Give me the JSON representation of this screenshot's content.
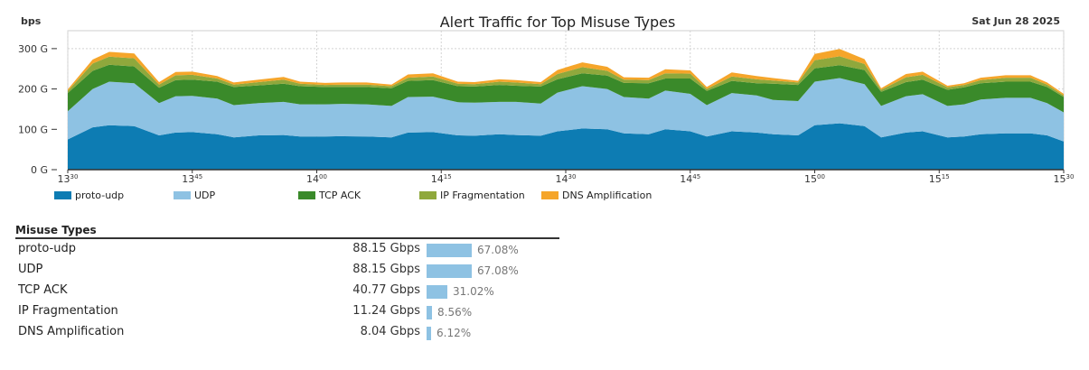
{
  "chart_data": {
    "type": "area",
    "stacked": true,
    "title": "Alert Traffic for Top Misuse Types",
    "unit_label": "bps",
    "date_label": "Sat Jun 28 2025",
    "ylim": [
      0,
      340
    ],
    "y_ticks": [
      {
        "value": 0,
        "label": "0 G"
      },
      {
        "value": 100,
        "label": "100 G"
      },
      {
        "value": 200,
        "label": "200 G"
      },
      {
        "value": 300,
        "label": "300 G"
      }
    ],
    "x_range_minutes": [
      810,
      930
    ],
    "x_ticks": [
      {
        "t": 810,
        "hour": "13",
        "minute": "30"
      },
      {
        "t": 825,
        "hour": "13",
        "minute": "45"
      },
      {
        "t": 840,
        "hour": "14",
        "minute": "00"
      },
      {
        "t": 855,
        "hour": "14",
        "minute": "15"
      },
      {
        "t": 870,
        "hour": "14",
        "minute": "30"
      },
      {
        "t": 885,
        "hour": "14",
        "minute": "45"
      },
      {
        "t": 900,
        "hour": "15",
        "minute": "00"
      },
      {
        "t": 915,
        "hour": "15",
        "minute": "15"
      },
      {
        "t": 930,
        "hour": "15",
        "minute": "30"
      }
    ],
    "grid": true,
    "legend_position": "bottom",
    "x": [
      810,
      813,
      815,
      818,
      821,
      823,
      825,
      828,
      830,
      833,
      836,
      838,
      841,
      843,
      846,
      849,
      851,
      854,
      857,
      859,
      862,
      864,
      867,
      869,
      872,
      875,
      877,
      880,
      882,
      885,
      887,
      890,
      893,
      895,
      898,
      900,
      903,
      906,
      908,
      911,
      913,
      916,
      918,
      920,
      923,
      926,
      928,
      930
    ],
    "series": [
      {
        "name": "proto-udp",
        "color": "#0d7cb3",
        "values": [
          75,
          105,
          110,
          108,
          85,
          92,
          93,
          88,
          80,
          85,
          86,
          82,
          82,
          83,
          82,
          80,
          92,
          93,
          85,
          84,
          88,
          86,
          84,
          95,
          102,
          100,
          90,
          88,
          100,
          95,
          82,
          95,
          92,
          88,
          85,
          110,
          115,
          108,
          80,
          92,
          95,
          80,
          82,
          88,
          90,
          90,
          85,
          70
        ]
      },
      {
        "name": "UDP",
        "color": "#8ec2e3",
        "values": [
          70,
          95,
          108,
          106,
          80,
          90,
          90,
          88,
          80,
          80,
          82,
          80,
          80,
          80,
          80,
          78,
          88,
          88,
          82,
          82,
          80,
          82,
          80,
          96,
          105,
          100,
          90,
          88,
          96,
          93,
          78,
          95,
          92,
          85,
          85,
          108,
          112,
          104,
          78,
          90,
          92,
          78,
          80,
          86,
          88,
          88,
          80,
          72
        ]
      },
      {
        "name": "TCP ACK",
        "color": "#3a8a2a",
        "values": [
          45,
          45,
          42,
          42,
          38,
          40,
          40,
          42,
          45,
          44,
          45,
          45,
          43,
          42,
          43,
          44,
          40,
          41,
          40,
          40,
          42,
          40,
          42,
          33,
          32,
          33,
          35,
          38,
          30,
          38,
          35,
          30,
          30,
          40,
          40,
          33,
          32,
          35,
          35,
          35,
          36,
          40,
          42,
          40,
          40,
          40,
          40,
          38
        ]
      },
      {
        "name": "IP Fragmentation",
        "color": "#8fa83c",
        "values": [
          5,
          18,
          20,
          20,
          8,
          12,
          12,
          8,
          6,
          8,
          10,
          6,
          5,
          6,
          6,
          5,
          8,
          9,
          6,
          6,
          8,
          8,
          6,
          13,
          15,
          12,
          8,
          8,
          13,
          12,
          5,
          11,
          10,
          8,
          6,
          20,
          22,
          15,
          5,
          12,
          12,
          6,
          6,
          8,
          10,
          10,
          6,
          4
        ]
      },
      {
        "name": "DNS Amplification",
        "color": "#f5a52a",
        "values": [
          4,
          10,
          12,
          12,
          6,
          8,
          8,
          6,
          5,
          6,
          7,
          5,
          5,
          5,
          5,
          4,
          8,
          8,
          5,
          5,
          6,
          6,
          5,
          10,
          12,
          10,
          6,
          6,
          10,
          8,
          5,
          10,
          8,
          6,
          4,
          16,
          18,
          12,
          4,
          8,
          8,
          4,
          4,
          6,
          6,
          6,
          5,
          4
        ]
      }
    ]
  },
  "misuse_table": {
    "title": "Misuse Types",
    "rows": [
      {
        "name": "proto-udp",
        "value": "88.15 Gbps",
        "percent": "67.08%",
        "fraction": 0.6708
      },
      {
        "name": "UDP",
        "value": "88.15 Gbps",
        "percent": "67.08%",
        "fraction": 0.6708
      },
      {
        "name": "TCP ACK",
        "value": "40.77 Gbps",
        "percent": "31.02%",
        "fraction": 0.3102
      },
      {
        "name": "IP Fragmentation",
        "value": "11.24 Gbps",
        "percent": "8.56%",
        "fraction": 0.0856
      },
      {
        "name": "DNS Amplification",
        "value": "8.04 Gbps",
        "percent": "6.12%",
        "fraction": 0.0612
      }
    ]
  }
}
